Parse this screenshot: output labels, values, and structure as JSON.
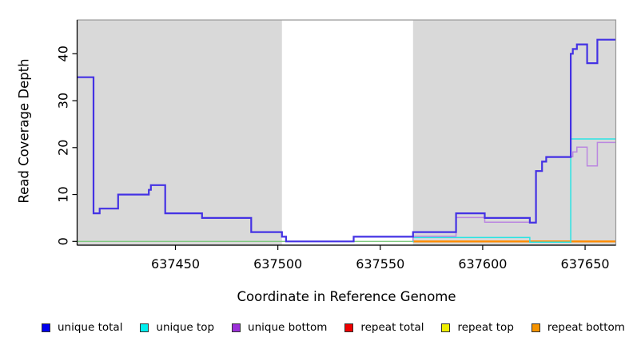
{
  "chart_data": {
    "type": "line",
    "subtype": "step",
    "title": "",
    "xlabel": "Coordinate in Reference Genome",
    "ylabel": "Read Coverage Depth",
    "xlim": [
      637402,
      637665
    ],
    "ylim": [
      -0.8,
      47.2
    ],
    "x_ticks": {
      "values": [
        637450,
        637500,
        637550,
        637600,
        637650
      ],
      "labels": [
        "637450",
        "637500",
        "637550",
        "637600",
        "637650"
      ]
    },
    "y_ticks": {
      "values": [
        0,
        10,
        20,
        30,
        40
      ],
      "labels": [
        "0",
        "10",
        "20",
        "30",
        "40"
      ]
    },
    "grid": "off",
    "plot_bg": "#D9D9D9",
    "border_color": "#999999",
    "axis_color": "#000000",
    "highlight_region": {
      "from": 637502,
      "to": 637566,
      "fill": "#FFFFFF"
    },
    "baseline": {
      "id": "zero-baseline",
      "color": "#7FC97F",
      "width": 1.3,
      "points": [
        [
          637402,
          0
        ],
        [
          637566,
          0
        ]
      ]
    },
    "legend_position": "bottom",
    "draw_order": [
      3,
      4,
      5,
      1,
      2,
      0
    ],
    "series": [
      {
        "id": "unique-total",
        "name": "unique total",
        "legend_color": "#0000EE",
        "line_color": "#4432E4",
        "width": 2.2,
        "dy": 0,
        "points": [
          [
            637402,
            35
          ],
          [
            637410,
            6
          ],
          [
            637413,
            7
          ],
          [
            637422,
            10
          ],
          [
            637437,
            11
          ],
          [
            637438,
            12
          ],
          [
            637445,
            6
          ],
          [
            637463,
            5
          ],
          [
            637487,
            2
          ],
          [
            637502,
            1
          ],
          [
            637504,
            0
          ],
          [
            637537,
            1
          ],
          [
            637566,
            2
          ],
          [
            637587,
            6
          ],
          [
            637601,
            5
          ],
          [
            637623,
            4
          ],
          [
            637626,
            15
          ],
          [
            637629,
            17
          ],
          [
            637631,
            18
          ],
          [
            637643,
            40
          ],
          [
            637644,
            41
          ],
          [
            637646,
            42
          ],
          [
            637651,
            38
          ],
          [
            637656,
            43
          ],
          [
            637665,
            43
          ]
        ]
      },
      {
        "id": "unique-top",
        "name": "unique top",
        "legend_color": "#00EEEE",
        "line_color": "#2AE4E4",
        "width": 1.5,
        "dy": 1.0,
        "points": [
          [
            637566,
            0
          ],
          [
            637566,
            1
          ],
          [
            637623,
            0
          ],
          [
            637643,
            22
          ],
          [
            637665,
            22
          ]
        ]
      },
      {
        "id": "unique-bottom",
        "name": "unique bottom",
        "legend_color": "#9B30D8",
        "line_color": "#BB87E0",
        "width": 1.5,
        "dy": -0.5,
        "points": [
          [
            637566,
            0
          ],
          [
            637566,
            1
          ],
          [
            637587,
            5
          ],
          [
            637601,
            4
          ],
          [
            637626,
            15
          ],
          [
            637629,
            17
          ],
          [
            637631,
            18
          ],
          [
            637644,
            19
          ],
          [
            637646,
            20
          ],
          [
            637651,
            16
          ],
          [
            637656,
            21
          ],
          [
            637665,
            21
          ]
        ]
      },
      {
        "id": "repeat-total",
        "name": "repeat total",
        "legend_color": "#EE0000",
        "line_color": "#EE0000",
        "width": 1.2,
        "dy": 0,
        "points": [
          [
            637566,
            0
          ],
          [
            637665,
            0
          ]
        ]
      },
      {
        "id": "repeat-top",
        "name": "repeat top",
        "legend_color": "#EEEE00",
        "line_color": "#EEEE00",
        "width": 1.2,
        "dy": 0,
        "points": [
          [
            637566,
            0
          ],
          [
            637665,
            0
          ]
        ]
      },
      {
        "id": "repeat-bottom",
        "name": "repeat bottom",
        "legend_color": "#F59300",
        "line_color": "#FF8C00",
        "width": 2.4,
        "dy": 0,
        "points": [
          [
            637566,
            0
          ],
          [
            637665,
            0
          ]
        ]
      }
    ]
  }
}
